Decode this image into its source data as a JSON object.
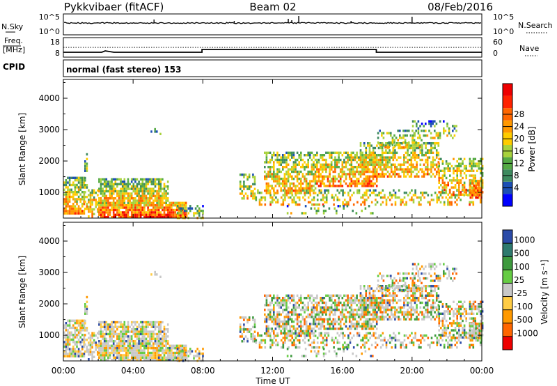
{
  "header": {
    "station": "Pykkvibaer (fitACF)",
    "beam": "Beam 02",
    "date": "08/Feb/2016"
  },
  "nsky_panel": {
    "left_label": "N.Sky",
    "left_ticks": [
      "10^5",
      "10^0"
    ],
    "right_ticks": [
      "10^5",
      "10^0"
    ],
    "right_label": "N.Search",
    "line_style_right": "dotted"
  },
  "freq_panel": {
    "left_label_line1": "Freq.",
    "left_label_line2": "[MHz]",
    "left_ticks": [
      "18",
      "8"
    ],
    "right_ticks": [
      "60",
      "0"
    ],
    "right_label": "Nave",
    "line_style_right": "dotted"
  },
  "cpid_panel": {
    "label": "CPID",
    "text": "normal (fast stereo) 153"
  },
  "chart_data": [
    {
      "type": "heatmap",
      "name": "power",
      "ylabel": "Slant Range [km]",
      "ylim": [
        180,
        4600
      ],
      "yticks": [
        1000,
        2000,
        3000,
        4000
      ],
      "xlim_hours": [
        0,
        24
      ],
      "colorbar": {
        "label": "Power [dB]",
        "ticks": [
          "4",
          "8",
          "12",
          "16",
          "20",
          "24",
          "28"
        ],
        "colors": [
          "#0000ff",
          "#1c4fb4",
          "#3e8a5f",
          "#55aa44",
          "#a8d23c",
          "#ffcc00",
          "#ff9900",
          "#ff6600",
          "#ff2200",
          "#ee0000"
        ]
      }
    },
    {
      "type": "heatmap",
      "name": "velocity",
      "ylabel": "Slant Range [km]",
      "ylim": [
        180,
        4600
      ],
      "yticks": [
        1000,
        2000,
        3000,
        4000
      ],
      "xlim_hours": [
        0,
        24
      ],
      "colorbar": {
        "label": "Velocity [m s⁻¹]",
        "ticks": [
          "1000",
          "500",
          "100",
          "25",
          "-25",
          "-100",
          "-500",
          "-1000"
        ],
        "colors": [
          "#2b4ba8",
          "#2e7a6e",
          "#3e9a3e",
          "#66cc44",
          "#c8c8c8",
          "#ffcc44",
          "#ff9900",
          "#ff6600",
          "#ee0000"
        ]
      }
    }
  ],
  "xaxis": {
    "ticks": [
      "00:00",
      "04:00",
      "08:00",
      "12:00",
      "16:00",
      "20:00",
      "00:00"
    ],
    "label": "Time UT"
  }
}
